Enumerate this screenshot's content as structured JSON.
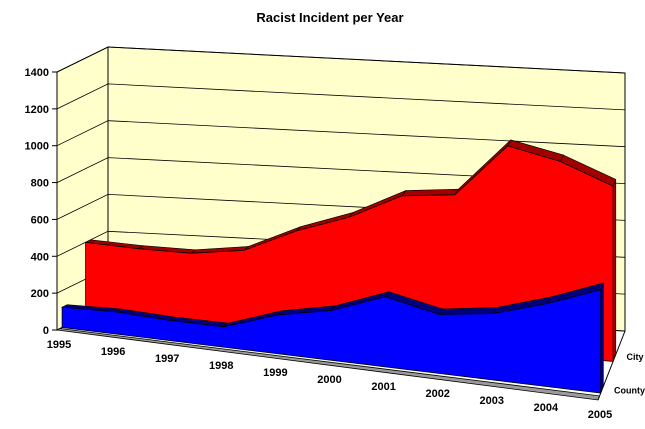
{
  "chart_data": {
    "type": "area",
    "title": "Racist Incident per Year",
    "xlabel": "",
    "ylabel": "",
    "categories": [
      "1995",
      "1996",
      "1997",
      "1998",
      "1999",
      "2000",
      "2001",
      "2002",
      "2003",
      "2004",
      "2005"
    ],
    "ylim": [
      0,
      1400
    ],
    "yticks": [
      "0",
      "200",
      "400",
      "600",
      "800",
      "1000",
      "1200",
      "1400"
    ],
    "series": [
      {
        "name": "County",
        "color": "#0000ff",
        "values": [
          110,
          120,
          110,
          110,
          210,
          270,
          380,
          320,
          360,
          450,
          560
        ]
      },
      {
        "name": "City",
        "color": "#ff0000",
        "values": [
          400,
          390,
          390,
          430,
          560,
          660,
          800,
          830,
          1120,
          1060,
          950
        ]
      }
    ],
    "grid": true,
    "three_d": true,
    "wall_color": "#ffffcc"
  }
}
